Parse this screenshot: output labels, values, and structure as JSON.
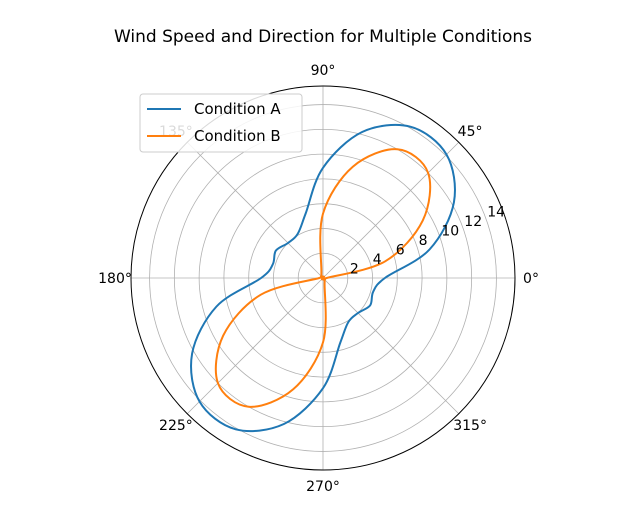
{
  "chart_data": {
    "type": "line",
    "projection": "polar",
    "title": "Wind Speed and Direction for Multiple Conditions",
    "angle_ticks": [
      "0°",
      "45°",
      "90°",
      "135°",
      "180°",
      "225°",
      "270°",
      "315°"
    ],
    "angle_tick_degrees": [
      0,
      45,
      90,
      135,
      180,
      225,
      270,
      315
    ],
    "radial_ticks": [
      "2",
      "4",
      "6",
      "8",
      "10",
      "12",
      "14"
    ],
    "radial_tick_values": [
      2,
      4,
      6,
      8,
      10,
      12,
      14
    ],
    "rlim": [
      0,
      15.5
    ],
    "grid": true,
    "legend_position": "top-left",
    "series": [
      {
        "name": "Condition A",
        "color": "#1f77b4",
        "theta_degrees": [
          0,
          15,
          30,
          45,
          60,
          75,
          90,
          105,
          120,
          135,
          150,
          165,
          180,
          195,
          210,
          225,
          240,
          255,
          270,
          285,
          300,
          315,
          330,
          345,
          360
        ],
        "r": [
          5.0,
          8.9,
          12.2,
          14.1,
          14.1,
          12.2,
          8.9,
          5.4,
          4.1,
          4.0,
          4.4,
          4.2,
          5.0,
          8.9,
          12.2,
          14.1,
          14.1,
          12.2,
          8.9,
          5.4,
          4.1,
          4.0,
          4.4,
          4.2,
          5.0
        ]
      },
      {
        "name": "Condition B",
        "color": "#ff7f0e",
        "theta_degrees": [
          0,
          15,
          30,
          45,
          60,
          75,
          90,
          105,
          120,
          135,
          150,
          165,
          180,
          195,
          210,
          225,
          240,
          255,
          270,
          285,
          300,
          315,
          330,
          345,
          360
        ],
        "r": [
          0.3,
          5.2,
          9.3,
          12.0,
          12.0,
          9.3,
          5.2,
          0.5,
          0.2,
          0.2,
          0.2,
          0.2,
          0.3,
          5.2,
          9.3,
          12.0,
          12.0,
          9.3,
          5.2,
          0.5,
          0.2,
          0.2,
          0.2,
          0.2,
          0.3
        ]
      }
    ]
  }
}
